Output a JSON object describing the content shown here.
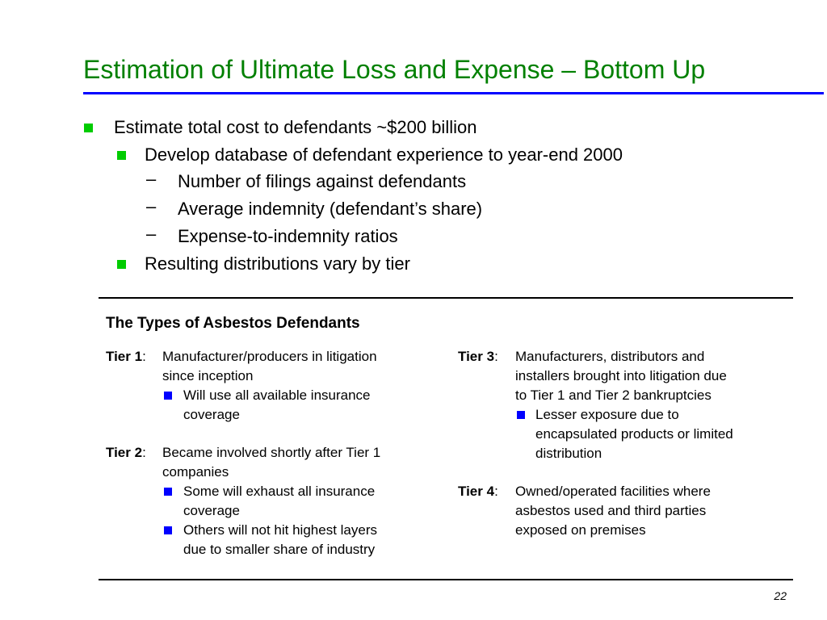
{
  "title": "Estimation of Ultimate Loss and Expense – Bottom Up",
  "bullets": {
    "level1": "Estimate total cost to defendants ~$200 billion",
    "level2a": "Develop database of defendant experience to year-end 2000",
    "dash1": "Number of filings against defendants",
    "dash2": "Average indemnity (defendant’s share)",
    "dash3": "Expense-to-indemnity ratios",
    "level2b": "Resulting distributions vary by tier",
    "dash_glyph": "–"
  },
  "box": {
    "heading": "The Types of Asbestos Defendants",
    "tier1": {
      "label": "Tier 1",
      "lines": [
        "Manufacturer/producers in litigation",
        "since inception"
      ],
      "sub": [
        [
          "Will use all available insurance",
          "coverage"
        ]
      ]
    },
    "tier2": {
      "label": "Tier 2",
      "lines": [
        "Became involved shortly after Tier 1",
        "companies"
      ],
      "sub": [
        [
          "Some will exhaust all insurance",
          "coverage"
        ],
        [
          "Others will not hit highest layers",
          "due to smaller share of industry"
        ]
      ]
    },
    "tier3": {
      "label": "Tier 3",
      "lines": [
        "Manufacturers, distributors and",
        "installers brought into litigation due",
        "to Tier 1 and Tier 2 bankruptcies"
      ],
      "sub": [
        [
          "Lesser exposure due to",
          "encapsulated products or limited",
          "distribution"
        ]
      ]
    },
    "tier4": {
      "label": "Tier 4",
      "lines": [
        "Owned/operated facilities where",
        "asbestos used and third parties",
        "exposed on premises"
      ]
    }
  },
  "page_number": "22",
  "colors": {
    "title": "#008000",
    "title_rule": "#0000ff",
    "level_bullet": "#00cc00",
    "sub_bullet": "#0000ff"
  }
}
